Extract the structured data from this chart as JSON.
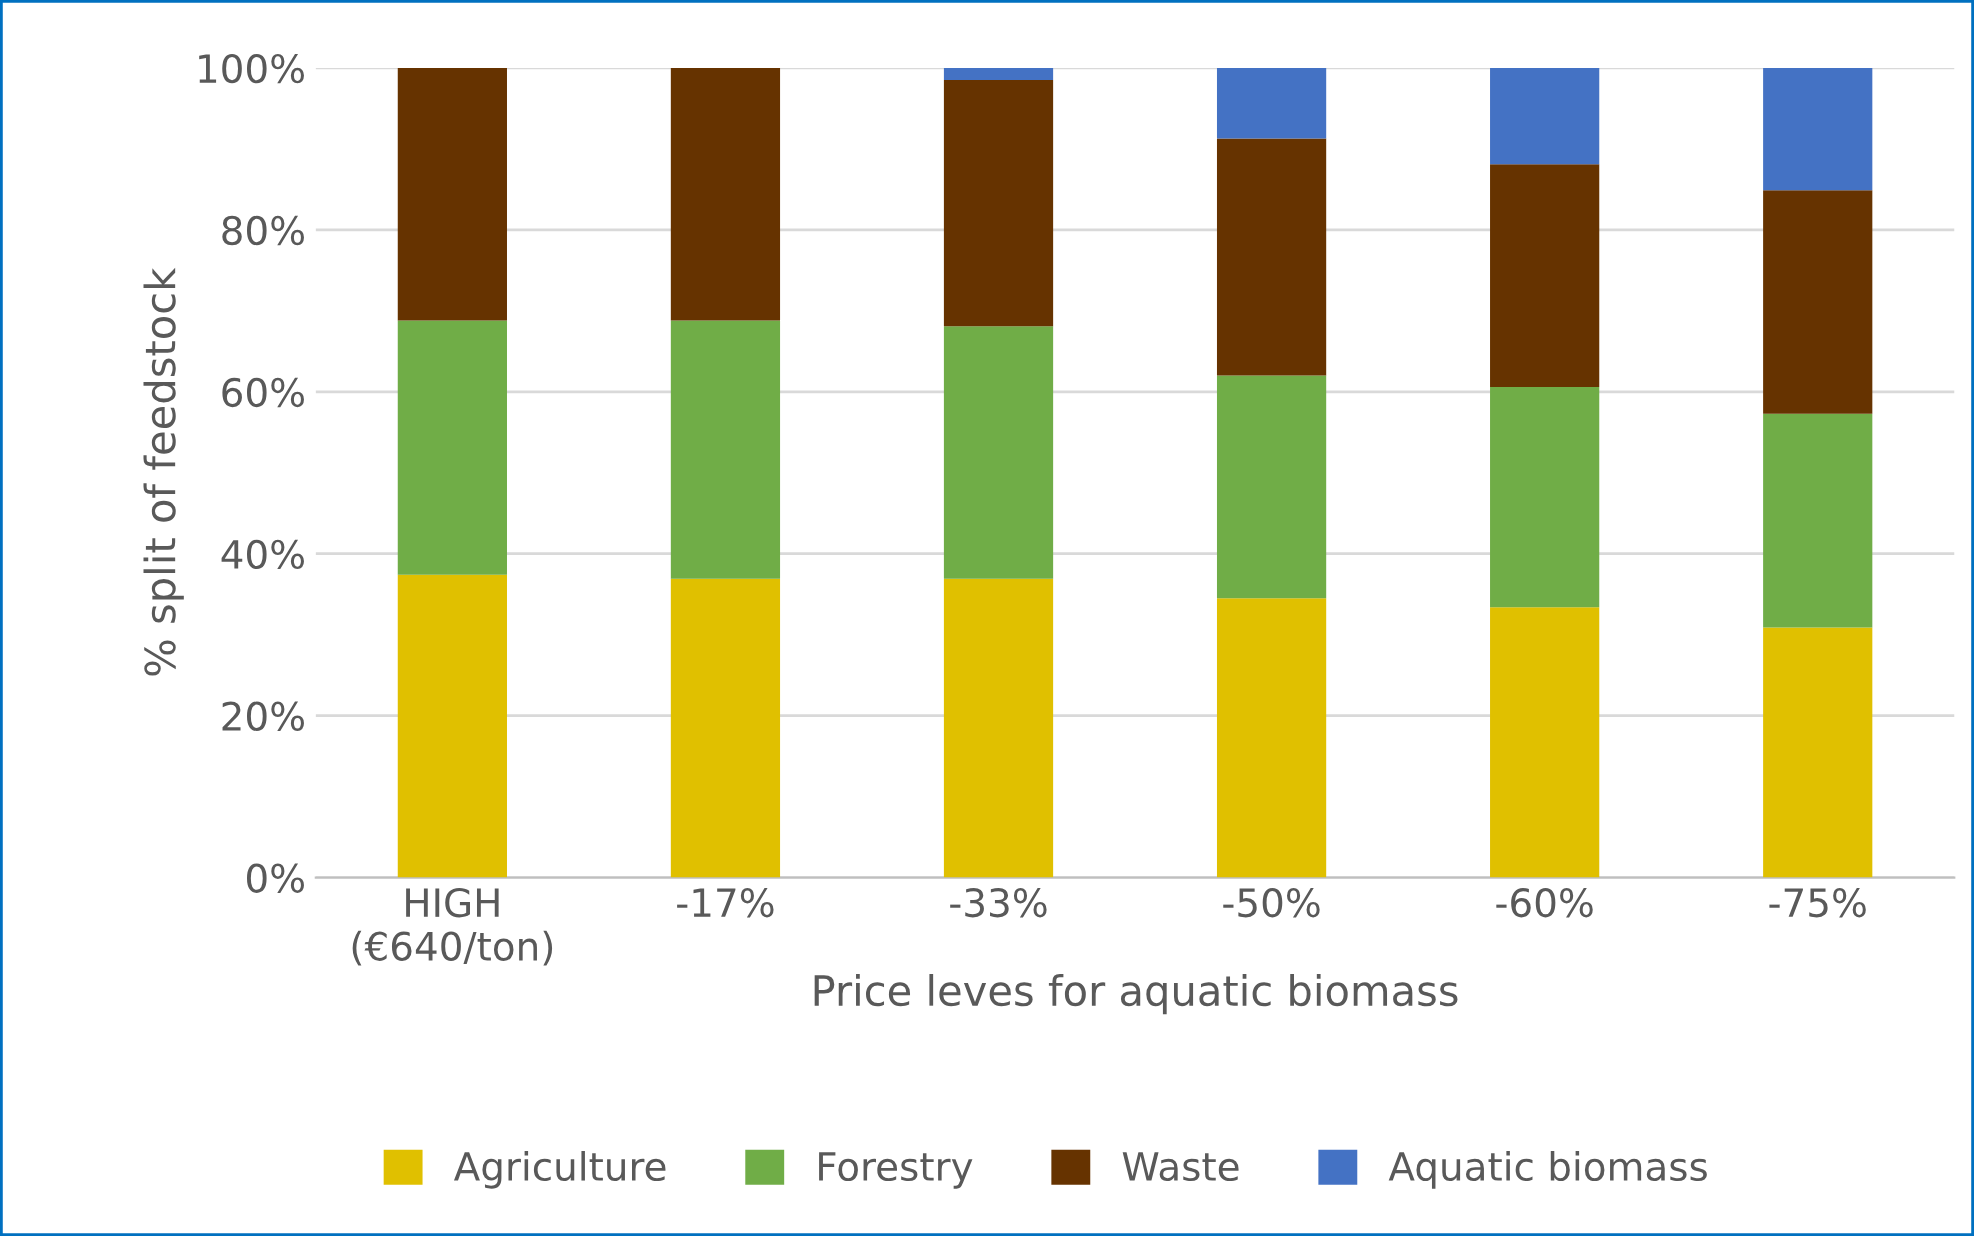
{
  "chart_data": {
    "type": "bar",
    "stacked": true,
    "xlabel": "Price leves for aquatic biomass",
    "ylabel": "% split of feedstock",
    "categories": [
      "HIGH\n(€640/ton)",
      "-17%",
      "-33%",
      "-50%",
      "-60%",
      "-75%"
    ],
    "series": [
      {
        "name": "Agriculture",
        "color": "#e0c000",
        "values": [
          37.4,
          36.9,
          36.9,
          34.5,
          33.4,
          30.9
        ]
      },
      {
        "name": "Forestry",
        "color": "#70ad47",
        "values": [
          31.4,
          31.9,
          31.2,
          27.5,
          27.2,
          26.4
        ]
      },
      {
        "name": "Waste",
        "color": "#663300",
        "values": [
          31.2,
          31.2,
          30.4,
          29.3,
          27.5,
          27.6
        ]
      },
      {
        "name": "Aquatic biomass",
        "color": "#4472c4",
        "values": [
          0,
          0,
          1.5,
          8.7,
          11.9,
          15.1
        ]
      }
    ],
    "ylim": [
      0,
      100
    ],
    "yticks": [
      {
        "value": 0,
        "label": "0%"
      },
      {
        "value": 20,
        "label": "20%"
      },
      {
        "value": 40,
        "label": "40%"
      },
      {
        "value": 60,
        "label": "60%"
      },
      {
        "value": 80,
        "label": "80%"
      },
      {
        "value": 100,
        "label": "100%"
      }
    ],
    "grid": "y",
    "legend": "bottom"
  }
}
